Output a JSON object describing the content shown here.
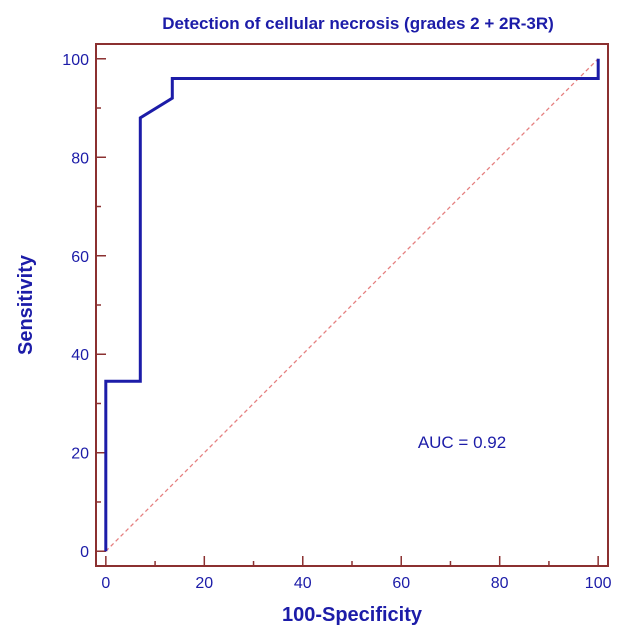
{
  "chart_data": {
    "type": "line",
    "title": "Detection of cellular necrosis (grades 2 + 2R-3R)",
    "xlabel": "100-Specificity",
    "ylabel": "Sensitivity",
    "xlim": [
      -2,
      102
    ],
    "ylim": [
      -3,
      103
    ],
    "xticks": [
      0,
      20,
      40,
      60,
      80,
      100
    ],
    "yticks": [
      0,
      20,
      40,
      60,
      80,
      100
    ],
    "minor_step": 10,
    "grid": false,
    "legend": "none",
    "annotation": "AUC = 0.92",
    "series": [
      {
        "style": "solid",
        "color": "#1c1ca8",
        "x": [
          0,
          0,
          7,
          7,
          13.5,
          13.5,
          100,
          100
        ],
        "y": [
          0,
          34.5,
          34.5,
          88,
          92,
          96,
          96,
          100
        ]
      },
      {
        "style": "dashed",
        "color": "#e58080",
        "x": [
          0,
          100
        ],
        "y": [
          0,
          100
        ]
      }
    ],
    "colors": {
      "axis": "#8b3030",
      "text": "#1c1ca8",
      "background": "#ffffff"
    }
  }
}
